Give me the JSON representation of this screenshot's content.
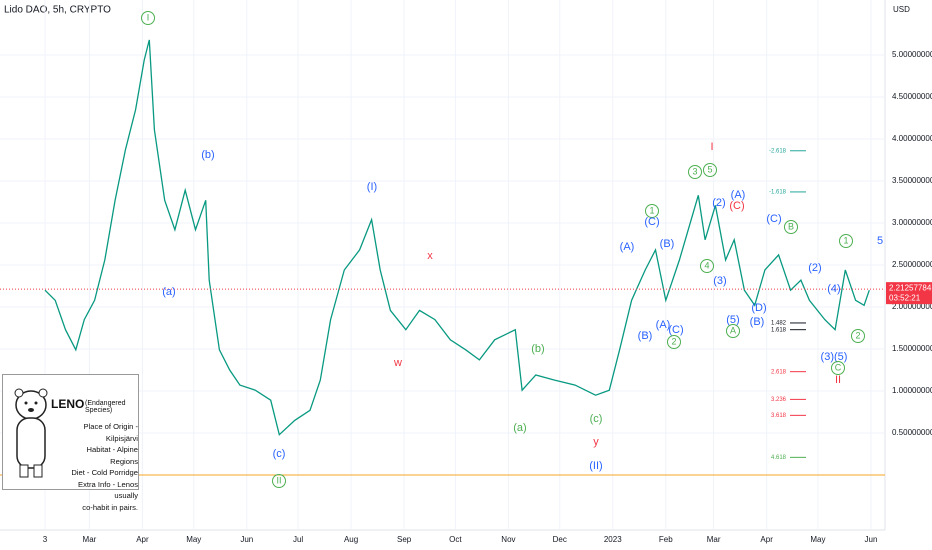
{
  "chart_data": {
    "type": "line",
    "title": "Lido DAO, 5h, CRYPTO",
    "y_unit": "USD",
    "color": "#089981",
    "x": [
      2,
      8,
      14,
      20,
      25,
      31,
      37,
      43,
      49,
      55,
      60,
      63,
      66,
      72,
      78,
      84,
      90,
      96,
      98,
      104,
      110,
      116,
      125,
      134,
      139,
      148,
      157,
      163,
      169,
      177,
      186,
      193,
      198,
      204,
      213,
      221,
      230,
      239,
      248,
      256,
      265,
      277,
      281,
      289,
      300,
      312,
      324,
      332,
      338,
      345,
      353,
      359,
      365,
      373,
      384,
      388,
      394,
      400,
      405,
      411,
      417,
      423,
      431,
      438,
      444,
      449,
      458,
      464,
      470,
      476,
      481,
      484
    ],
    "values": [
      2.2,
      2.08,
      1.73,
      1.49,
      1.85,
      2.08,
      2.56,
      3.27,
      3.87,
      4.35,
      4.94,
      5.18,
      4.11,
      3.27,
      2.92,
      3.39,
      2.92,
      3.27,
      2.32,
      1.49,
      1.25,
      1.07,
      1.01,
      0.89,
      0.48,
      0.65,
      0.77,
      1.13,
      1.85,
      2.44,
      2.68,
      3.04,
      2.44,
      1.96,
      1.73,
      1.96,
      1.85,
      1.61,
      1.49,
      1.37,
      1.61,
      1.73,
      1.01,
      1.19,
      1.13,
      1.07,
      0.95,
      1.01,
      1.49,
      2.08,
      2.44,
      2.68,
      2.08,
      2.56,
      3.33,
      2.8,
      3.21,
      2.56,
      2.8,
      2.2,
      2.02,
      2.44,
      2.62,
      2.2,
      2.32,
      2.08,
      1.85,
      1.73,
      2.44,
      2.08,
      2.02,
      2.2
    ],
    "xlim": [
      -24.3,
      493.2
    ],
    "xticks": [
      {
        "value": 2,
        "label": "3"
      },
      {
        "value": 28,
        "label": "Mar"
      },
      {
        "value": 59,
        "label": "Apr"
      },
      {
        "value": 89,
        "label": "May"
      },
      {
        "value": 120,
        "label": "Jun"
      },
      {
        "value": 150,
        "label": "Jul"
      },
      {
        "value": 181,
        "label": "Aug"
      },
      {
        "value": 212,
        "label": "Sep"
      },
      {
        "value": 242,
        "label": "Oct"
      },
      {
        "value": 273,
        "label": "Nov"
      },
      {
        "value": 303,
        "label": "Dec"
      },
      {
        "value": 334,
        "label": "2023"
      },
      {
        "value": 365,
        "label": "Feb"
      },
      {
        "value": 393,
        "label": "Mar"
      },
      {
        "value": 424,
        "label": "Apr"
      },
      {
        "value": 454,
        "label": "May"
      },
      {
        "value": 485,
        "label": "Jun"
      }
    ],
    "ylim": [
      -0.655,
      5.655
    ],
    "yticks": [
      {
        "value": 0.5,
        "label": "0.50000000"
      },
      {
        "value": 1,
        "label": "1.00000000"
      },
      {
        "value": 1.5,
        "label": "1.50000000"
      },
      {
        "value": 2,
        "label": "2.00000000"
      },
      {
        "value": 2.5,
        "label": "2.50000000"
      },
      {
        "value": 3,
        "label": "3.00000000"
      },
      {
        "value": 3.5,
        "label": "3.50000000"
      },
      {
        "value": 4,
        "label": "4.00000000"
      },
      {
        "value": 4.5,
        "label": "4.50000000"
      },
      {
        "value": 5,
        "label": "5.00000000"
      }
    ],
    "grid": true,
    "last_price": 2.21257784,
    "last_price_color": "#f23645",
    "countdown": "03:52:21",
    "support_line": 0,
    "support_color": "#f5a623",
    "fib_levels": [
      {
        "value": 3.86,
        "label": "-2.618",
        "color": "#26a69a"
      },
      {
        "value": 3.37,
        "label": "-1.618",
        "color": "#26a69a"
      },
      {
        "value": 1.81,
        "label": "1.482",
        "color": "#131722"
      },
      {
        "value": 1.73,
        "label": "1.618",
        "color": "#131722"
      },
      {
        "value": 1.23,
        "label": "2.618",
        "color": "#f23645"
      },
      {
        "value": 0.9,
        "label": "3.236",
        "color": "#f23645"
      },
      {
        "value": 0.71,
        "label": "3.618",
        "color": "#f23645"
      },
      {
        "value": 0.21,
        "label": "4.618",
        "color": "#4caf50"
      }
    ],
    "annotations": [
      {
        "text": "I",
        "color": "#4caf50",
        "circled": true
      },
      {
        "text": "(b)",
        "color": "#2962ff"
      },
      {
        "text": "(a)",
        "color": "#2962ff"
      },
      {
        "text": "(c)",
        "color": "#2962ff"
      },
      {
        "text": "II",
        "color": "#4caf50",
        "circled": true
      },
      {
        "text": "(I)",
        "color": "#2962ff"
      },
      {
        "text": "x",
        "color": "#f23645"
      },
      {
        "text": "w",
        "color": "#f23645"
      },
      {
        "text": "(b)",
        "color": "#4caf50"
      },
      {
        "text": "(a)",
        "color": "#4caf50"
      },
      {
        "text": "(c)",
        "color": "#4caf50"
      },
      {
        "text": "y",
        "color": "#f23645"
      },
      {
        "text": "(II)",
        "color": "#2962ff"
      },
      {
        "text": "I",
        "color": "#f23645"
      },
      {
        "text": "3",
        "color": "#4caf50",
        "circled": true
      },
      {
        "text": "5",
        "color": "#4caf50",
        "circled": true
      },
      {
        "text": "(A)",
        "color": "#2962ff"
      },
      {
        "text": "1",
        "color": "#4caf50",
        "circled": true
      },
      {
        "text": "(C)",
        "color": "#2962ff"
      },
      {
        "text": "(B)",
        "color": "#2962ff"
      },
      {
        "text": "(A)",
        "color": "#2962ff"
      },
      {
        "text": "(C)",
        "color": "#2962ff"
      },
      {
        "text": "2",
        "color": "#4caf50",
        "circled": true
      },
      {
        "text": "(B)",
        "color": "#2962ff"
      },
      {
        "text": "(2)",
        "color": "#2962ff"
      },
      {
        "text": "(A)",
        "color": "#2962ff"
      },
      {
        "text": "(C)",
        "color": "#f23645"
      },
      {
        "text": "(C)",
        "color": "#2962ff"
      },
      {
        "text": "B",
        "color": "#4caf50",
        "circled": true
      },
      {
        "text": "(2)",
        "color": "#2962ff"
      },
      {
        "text": "(4)",
        "color": "#2962ff"
      },
      {
        "text": "1",
        "color": "#4caf50",
        "circled": true
      },
      {
        "text": "5",
        "color": "#2962ff"
      },
      {
        "text": "(3)(5)",
        "color": "#2962ff"
      },
      {
        "text": "C",
        "color": "#4caf50",
        "circled": true
      },
      {
        "text": "II",
        "color": "#f23645"
      },
      {
        "text": "2",
        "color": "#4caf50",
        "circled": true
      },
      {
        "text": "(5)",
        "color": "#2962ff"
      },
      {
        "text": "A",
        "color": "#4caf50",
        "circled": true
      },
      {
        "text": "(B)",
        "color": "#2962ff"
      },
      {
        "text": "(D)",
        "color": "#2962ff"
      },
      {
        "text": "(3)",
        "color": "#2962ff"
      },
      {
        "text": "4",
        "color": "#4caf50",
        "circled": true
      }
    ]
  },
  "card": {
    "name": "LENO",
    "subtitle": "(Endangered Species)",
    "lines": [
      "Place of Origin - Kilpisjärvi",
      "Habitat - Alpine Regions",
      "Diet - Cold Porridge",
      "Extra Info - Lenos usually",
      "co-habit in pairs."
    ]
  }
}
